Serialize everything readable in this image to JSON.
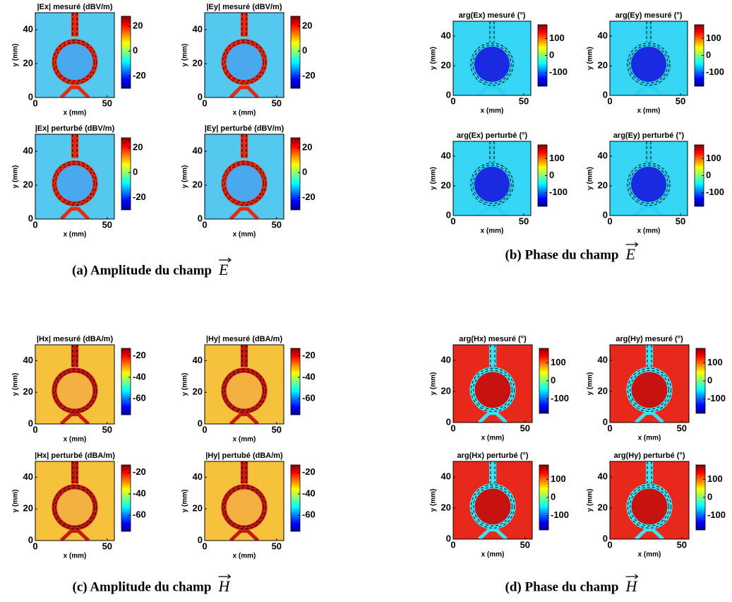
{
  "axes": {
    "xlabel": "x (mm)",
    "ylabel": "y (mm)",
    "xlim": [
      0,
      55
    ],
    "ylim": [
      0,
      50
    ],
    "xticks": [
      0,
      50
    ],
    "yticks": [
      0,
      20,
      40
    ]
  },
  "panels": [
    {
      "caption": "(a) Amplitude du champ",
      "symbol": "E",
      "clim": [
        -30,
        28
      ],
      "cticks": [
        20,
        0,
        -20
      ],
      "plots": [
        {
          "title": "|Ex| mesuré (dBV/m)"
        },
        {
          "title": "|Ey| mesuré (dBV/m)"
        },
        {
          "title": "|Ex| perturbé (dBV/m)"
        },
        {
          "title": "|Ey| perturbé (dBV/m)"
        }
      ]
    },
    {
      "caption": "(b) Phase du champ",
      "symbol": "E",
      "clim": [
        -180,
        180
      ],
      "cticks": [
        100,
        0,
        -100
      ],
      "plots": [
        {
          "title": "arg(Ex) mesuré (°)"
        },
        {
          "title": "arg(Ey) mesuré (°)"
        },
        {
          "title": "arg(Ex) perturbé (°)"
        },
        {
          "title": "arg(Ey) perturbé (°)"
        }
      ]
    },
    {
      "caption": "(c) Amplitude du champ",
      "symbol": "H",
      "clim": [
        -75,
        -13
      ],
      "cticks": [
        -20,
        -40,
        -60
      ],
      "plots": [
        {
          "title": "|Hx| mesuré (dBA/m)"
        },
        {
          "title": "|Hy| mesuré (dBA/m)"
        },
        {
          "title": "|Hx| perturbé (dBA/m)"
        },
        {
          "title": "|Hy| pertubé (dBA/m)"
        }
      ]
    },
    {
      "caption": "(d) Phase du champ",
      "symbol": "H",
      "clim": [
        -180,
        180
      ],
      "cticks": [
        100,
        0,
        -100
      ],
      "plots": [
        {
          "title": "arg(Hx) mesuré (°)"
        },
        {
          "title": "arg(Hy) mesuré (°)"
        },
        {
          "title": "arg(Hx) perturbé (°)"
        },
        {
          "title": "arg(Hy) perturbé (°)"
        }
      ]
    }
  ]
}
